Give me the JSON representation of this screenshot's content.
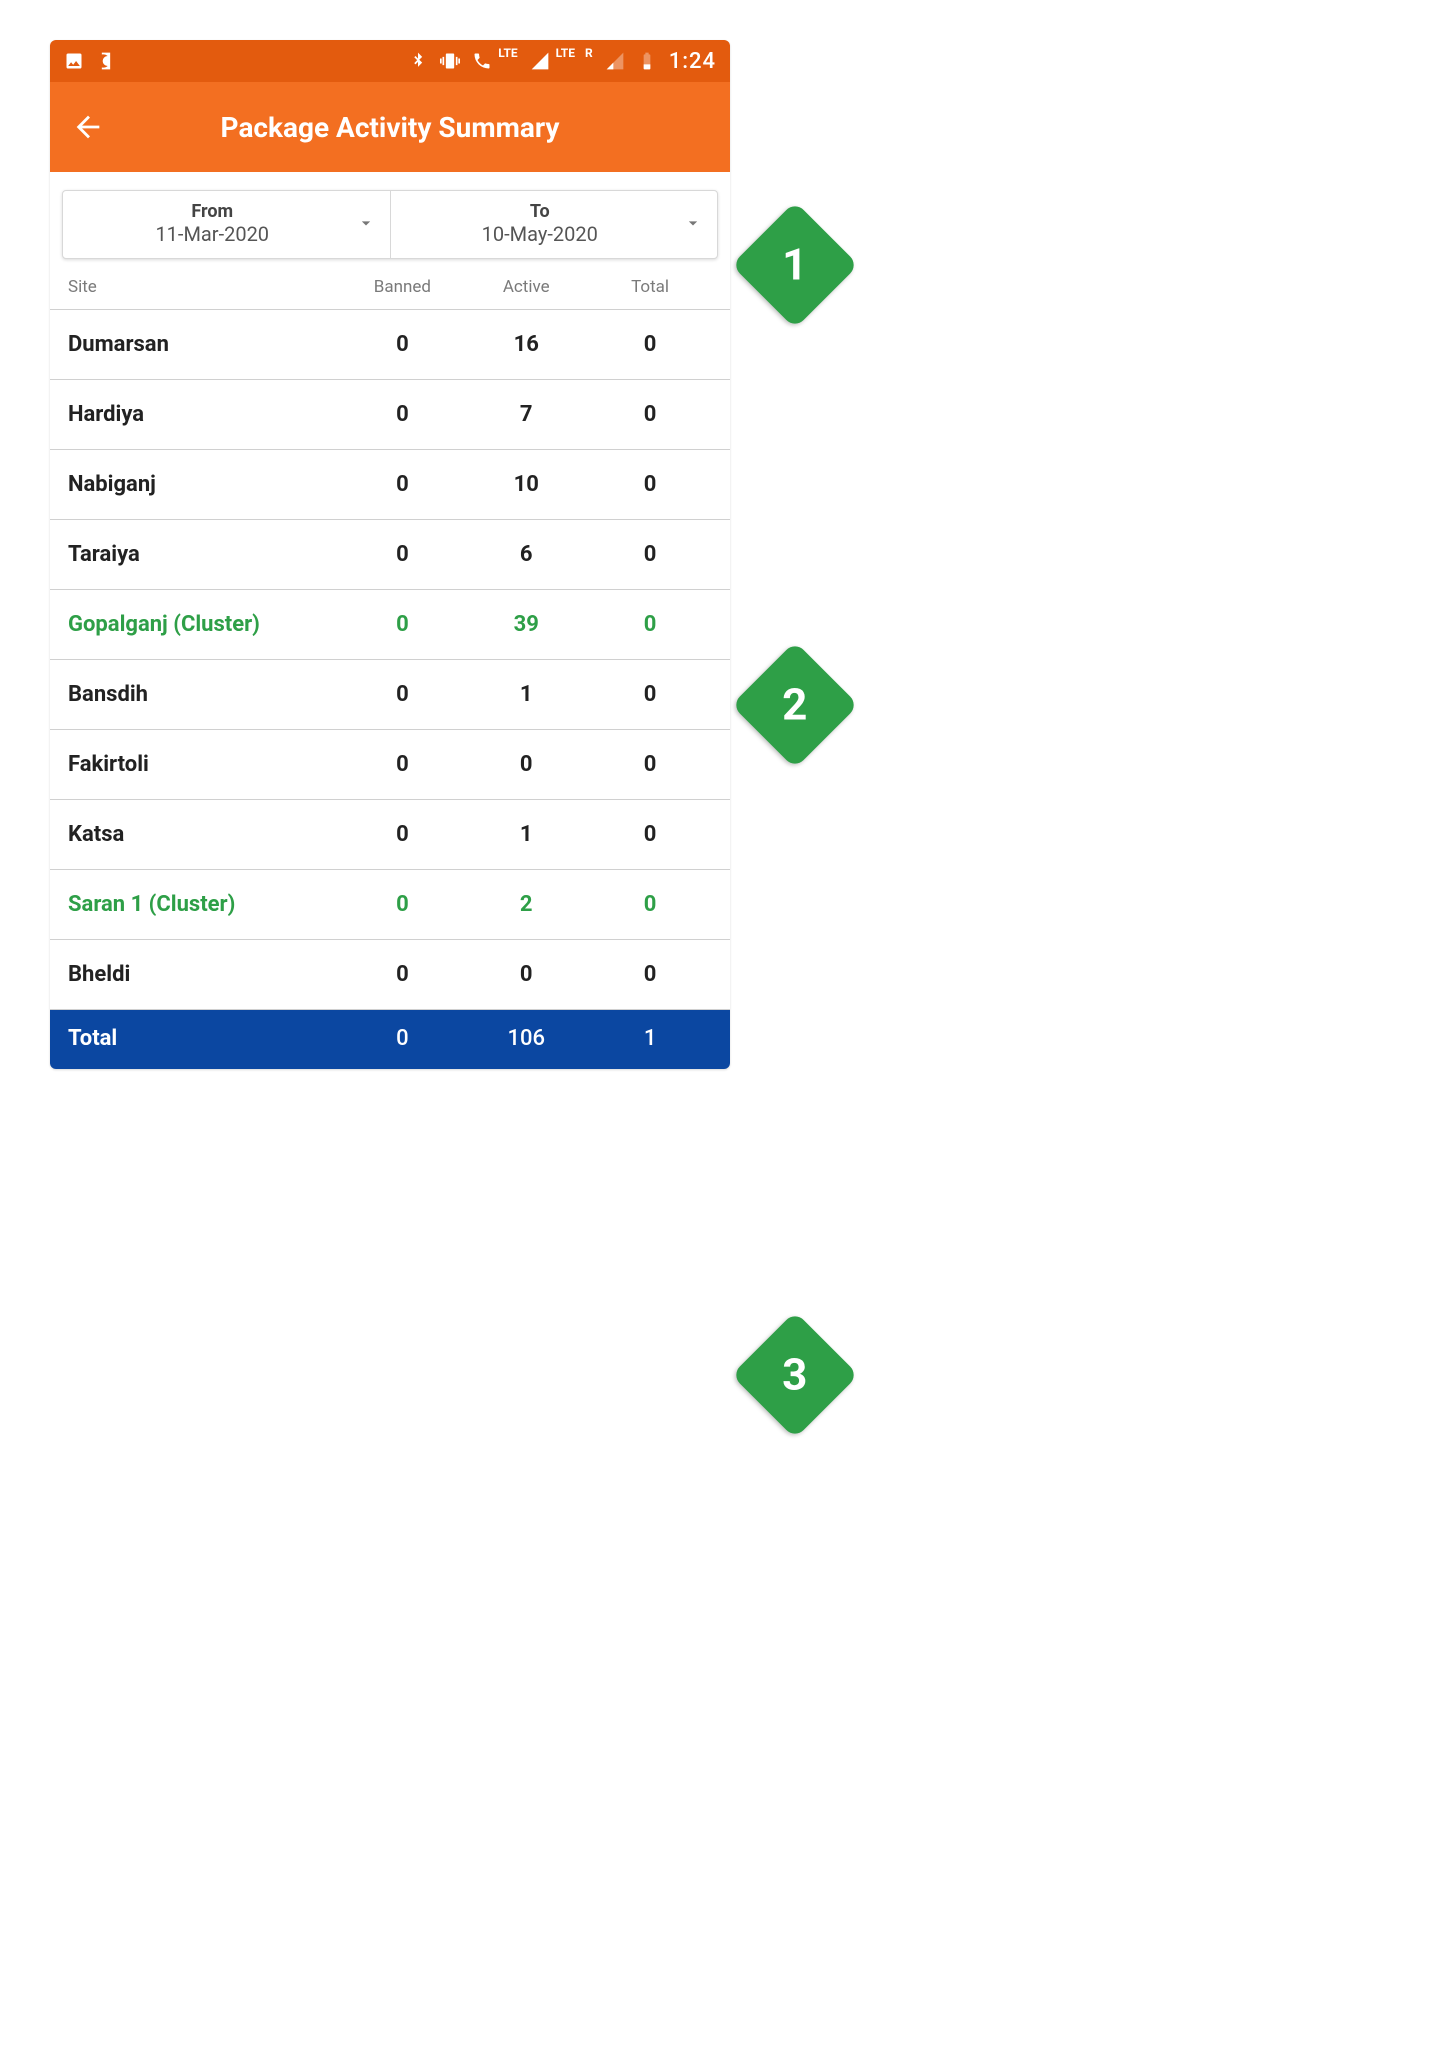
{
  "statusbar": {
    "time": "1:24",
    "network_label": "LTE",
    "roaming": "R"
  },
  "appbar": {
    "title": "Package Activity Summary"
  },
  "daterange": {
    "from": {
      "label": "From",
      "value": "11-Mar-2020"
    },
    "to": {
      "label": "To",
      "value": "10-May-2020"
    }
  },
  "columns": {
    "site": "Site",
    "banned": "Banned",
    "active": "Active",
    "total": "Total"
  },
  "rows": [
    {
      "site": "Dumarsan",
      "banned": "0",
      "active": "16",
      "total": "0",
      "cluster": false
    },
    {
      "site": "Hardiya",
      "banned": "0",
      "active": "7",
      "total": "0",
      "cluster": false
    },
    {
      "site": "Nabiganj",
      "banned": "0",
      "active": "10",
      "total": "0",
      "cluster": false
    },
    {
      "site": "Taraiya",
      "banned": "0",
      "active": "6",
      "total": "0",
      "cluster": false
    },
    {
      "site": "Gopalganj (Cluster)",
      "banned": "0",
      "active": "39",
      "total": "0",
      "cluster": true
    },
    {
      "site": "Bansdih",
      "banned": "0",
      "active": "1",
      "total": "0",
      "cluster": false
    },
    {
      "site": "Fakirtoli",
      "banned": "0",
      "active": "0",
      "total": "0",
      "cluster": false
    },
    {
      "site": "Katsa",
      "banned": "0",
      "active": "1",
      "total": "0",
      "cluster": false
    },
    {
      "site": "Saran 1 (Cluster)",
      "banned": "0",
      "active": "2",
      "total": "0",
      "cluster": true
    },
    {
      "site": "Bheldi",
      "banned": "0",
      "active": "0",
      "total": "0",
      "cluster": false
    }
  ],
  "totals": {
    "label": "Total",
    "banned": "0",
    "active": "106",
    "total": "1"
  },
  "annotations": {
    "one": "1",
    "two": "2",
    "three": "3"
  },
  "colors": {
    "orange": "#f36f21",
    "orange_dark": "#e35b0e",
    "green": "#2e9f47",
    "blue": "#0b47a1",
    "text": "#222222",
    "grey": "#7a7a7a",
    "row_border": "#d0d0d0"
  }
}
